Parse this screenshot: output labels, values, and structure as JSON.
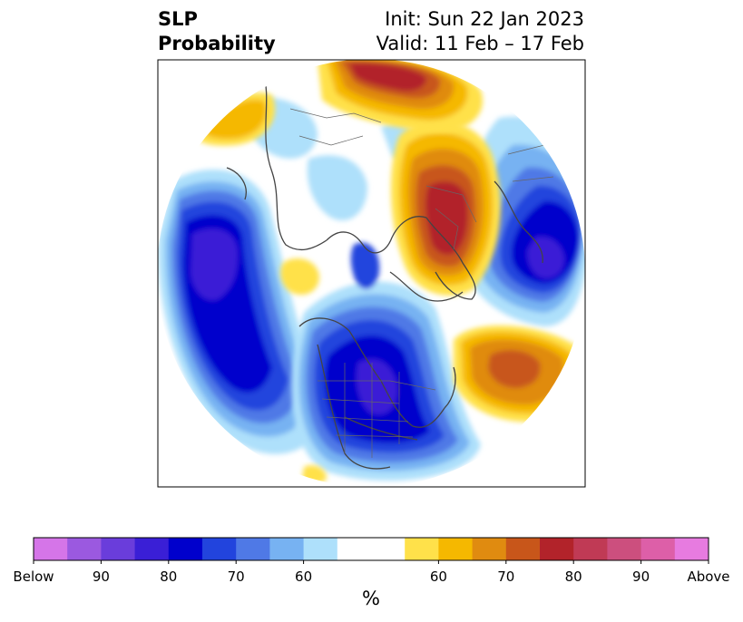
{
  "title": {
    "left_line1": "SLP",
    "left_line2": "Probability",
    "right_line1": "Init: Sun 22 Jan 2023",
    "right_line2": "Valid: 11 Feb – 17 Feb"
  },
  "colorbar": {
    "unit": "%",
    "colors": [
      "#d575e8",
      "#9b59e0",
      "#6a3ddb",
      "#3a1fd6",
      "#0000cc",
      "#2244dd",
      "#4f79e6",
      "#77b2f2",
      "#aee0fb",
      "#ffffff",
      "#ffffff",
      "#ffe14a",
      "#f5b800",
      "#e08b10",
      "#c8561a",
      "#b2232a",
      "#c03a55",
      "#cc4f7e",
      "#dd5fa8",
      "#e77be0"
    ],
    "ticks": [
      {
        "label": "Below",
        "index": 0
      },
      {
        "label": "90",
        "index": 2
      },
      {
        "label": "80",
        "index": 4
      },
      {
        "label": "70",
        "index": 6
      },
      {
        "label": "60",
        "index": 8
      },
      {
        "label": "60",
        "index": 12
      },
      {
        "label": "70",
        "index": 14
      },
      {
        "label": "80",
        "index": 16
      },
      {
        "label": "90",
        "index": 18
      },
      {
        "label": "Above",
        "index": 20
      }
    ]
  }
}
